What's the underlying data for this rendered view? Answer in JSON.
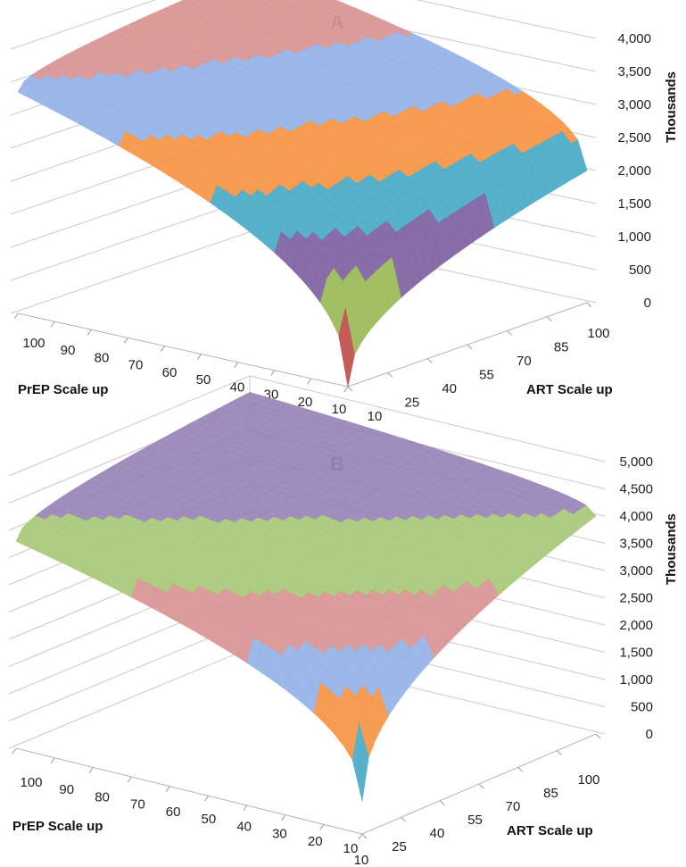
{
  "chart_data": [
    {
      "type": "surface",
      "title": "A",
      "zlabel": "Thousands",
      "xlabel": "PrEP Scale up",
      "ylabel": "ART Scale up",
      "prep_ticks": [
        "100",
        "90",
        "80",
        "70",
        "60",
        "50",
        "40",
        "30",
        "20",
        "10"
      ],
      "art_ticks": [
        "10",
        "25",
        "40",
        "55",
        "70",
        "85",
        "100"
      ],
      "z_ticks": [
        "0",
        "500",
        "1,000",
        "1,500",
        "2,000",
        "2,500",
        "3,000",
        "3,500",
        "4,000"
      ],
      "zlim": [
        0,
        4000
      ],
      "corner_values": {
        "prep10_art10": 0,
        "prep100_art10": 3350,
        "prep10_art100": 2000,
        "prep100_art100": 3950
      },
      "band_colors": [
        "#4f81bd",
        "#c0504d",
        "#9bbb59",
        "#8064a2",
        "#4bacc6",
        "#f79646",
        "#95b3e8",
        "#d99694"
      ]
    },
    {
      "type": "surface",
      "title": "B",
      "zlabel": "Thousands",
      "xlabel": "PrEP Scale up",
      "ylabel": "ART Scale up",
      "prep_ticks": [
        "100",
        "90",
        "80",
        "70",
        "60",
        "50",
        "40",
        "30",
        "20",
        "10"
      ],
      "art_ticks": [
        "10",
        "25",
        "40",
        "55",
        "70",
        "85",
        "100"
      ],
      "z_ticks": [
        "0",
        "500",
        "1,000",
        "1,500",
        "2,000",
        "2,500",
        "3,000",
        "3,500",
        "4,000",
        "4,500",
        "5,000"
      ],
      "zlim": [
        0,
        5000
      ],
      "corner_values": {
        "prep10_art10": 600,
        "prep100_art10": 3800,
        "prep10_art100": 4000,
        "prep100_art100": 4700
      },
      "band_colors": [
        "#8064a2",
        "#4bacc6",
        "#f79646",
        "#95b3e8",
        "#d99694",
        "#a9c97a",
        "#9a86b8"
      ]
    }
  ]
}
